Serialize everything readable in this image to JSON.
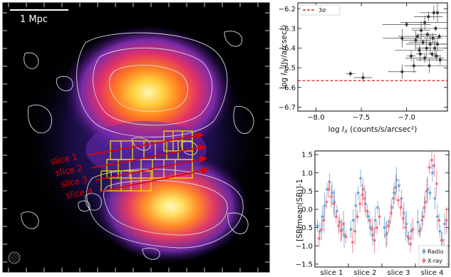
{
  "image_panel": {
    "scale_bar_label": "1 Mpc",
    "slice_labels": [
      "slice 1",
      "slice 2",
      "slice 3",
      "slice 4"
    ],
    "colors": {
      "contour": "#d9d9d9",
      "grid": "#e8e000",
      "arrow": "#e00000"
    }
  },
  "chart_data": [
    {
      "type": "scatter",
      "xlabel": "log I_X (counts/s/arcsec²)",
      "ylabel": "log I_R (Jy/arcsec²)",
      "xlim": [
        -8.2,
        -6.55
      ],
      "ylim": [
        -6.72,
        -6.17
      ],
      "xticks": [
        "−8.0",
        "−7.5",
        "−7.0"
      ],
      "xtick_values": [
        -8.0,
        -7.5,
        -7.0
      ],
      "yticks": [
        "−6.7",
        "−6.6",
        "−6.5",
        "−6.4",
        "−6.3",
        "−6.2"
      ],
      "ytick_values": [
        -6.7,
        -6.6,
        -6.5,
        -6.4,
        -6.3,
        -6.2
      ],
      "threshold": {
        "value": -6.565,
        "label": "3σ",
        "color": "#e00000"
      },
      "legend_position": "top-left",
      "points": [
        {
          "x": -7.62,
          "y": -6.53
        },
        {
          "x": -7.48,
          "y": -6.55
        },
        {
          "x": -7.05,
          "y": -6.52
        },
        {
          "x": -7.05,
          "y": -6.35
        },
        {
          "x": -7.0,
          "y": -6.28
        },
        {
          "x": -6.95,
          "y": -6.44
        },
        {
          "x": -6.92,
          "y": -6.49
        },
        {
          "x": -6.9,
          "y": -6.36
        },
        {
          "x": -6.88,
          "y": -6.34
        },
        {
          "x": -6.86,
          "y": -6.41
        },
        {
          "x": -6.85,
          "y": -6.43
        },
        {
          "x": -6.84,
          "y": -6.31
        },
        {
          "x": -6.82,
          "y": -6.37
        },
        {
          "x": -6.8,
          "y": -6.45
        },
        {
          "x": -6.8,
          "y": -6.27
        },
        {
          "x": -6.78,
          "y": -6.4
        },
        {
          "x": -6.77,
          "y": -6.33
        },
        {
          "x": -6.76,
          "y": -6.24
        },
        {
          "x": -6.75,
          "y": -6.49
        },
        {
          "x": -6.74,
          "y": -6.38
        },
        {
          "x": -6.72,
          "y": -6.43
        },
        {
          "x": -6.71,
          "y": -6.35
        },
        {
          "x": -6.7,
          "y": -6.22
        },
        {
          "x": -6.69,
          "y": -6.4
        },
        {
          "x": -6.68,
          "y": -6.3
        },
        {
          "x": -6.67,
          "y": -6.44
        },
        {
          "x": -6.66,
          "y": -6.38
        },
        {
          "x": -6.66,
          "y": -6.22
        },
        {
          "x": -6.64,
          "y": -6.34
        },
        {
          "x": -6.63,
          "y": -6.46
        }
      ]
    },
    {
      "type": "scatter",
      "ylabel": "[SB/mean(SB)]-1",
      "ylim": [
        -1.58,
        1.6
      ],
      "yticks": [
        "−1.5",
        "−1.0",
        "−0.5",
        "0.0",
        "0.5",
        "1.0",
        "1.5"
      ],
      "ytick_values": [
        -1.5,
        -1.0,
        -0.5,
        0.0,
        0.5,
        1.0,
        1.5
      ],
      "categories": [
        "slice 1",
        "slice 2",
        "slice 3",
        "slice 4"
      ],
      "legend_position": "bottom-right",
      "series": [
        {
          "name": "Radio",
          "color": "#6aa6d6",
          "values": [
            [
              -0.45,
              -0.6,
              -0.2,
              0.1,
              0.55,
              0.75,
              0.45,
              0.2,
              -0.05,
              -0.35,
              -0.55,
              -0.7
            ],
            [
              -0.55,
              -0.3,
              0.1,
              0.45,
              0.85,
              0.55,
              0.15,
              -0.2,
              -0.5,
              -0.7,
              -0.3,
              0.05
            ],
            [
              -0.5,
              -0.65,
              -0.35,
              0.05,
              0.45,
              0.8,
              0.65,
              0.3,
              -0.1,
              -0.4,
              -0.8,
              -0.6
            ],
            [
              -0.35,
              -0.55,
              -0.2,
              0.2,
              0.55,
              0.45,
              1.0,
              0.3,
              -0.2,
              -0.6,
              -0.85,
              -0.4
            ]
          ]
        },
        {
          "name": "X-ray",
          "color": "#f07080",
          "values": [
            [
              -0.8,
              -0.55,
              -0.3,
              0.2,
              0.55,
              0.35,
              0.15,
              -0.2,
              -0.45,
              -0.6,
              -0.4,
              -0.75
            ],
            [
              -0.9,
              -0.6,
              -0.2,
              0.15,
              0.4,
              0.3,
              -0.05,
              -0.3,
              -0.55,
              -0.85,
              -0.5,
              -0.2
            ],
            [
              -0.7,
              -0.45,
              -0.1,
              0.3,
              0.6,
              0.25,
              0.05,
              -0.25,
              -0.5,
              -0.75,
              -0.95,
              -0.55
            ],
            [
              -0.6,
              -0.3,
              0.05,
              0.5,
              1.15,
              1.35,
              1.2,
              0.7,
              -0.3,
              -0.85,
              -1.1,
              -0.3
            ]
          ]
        }
      ]
    }
  ]
}
